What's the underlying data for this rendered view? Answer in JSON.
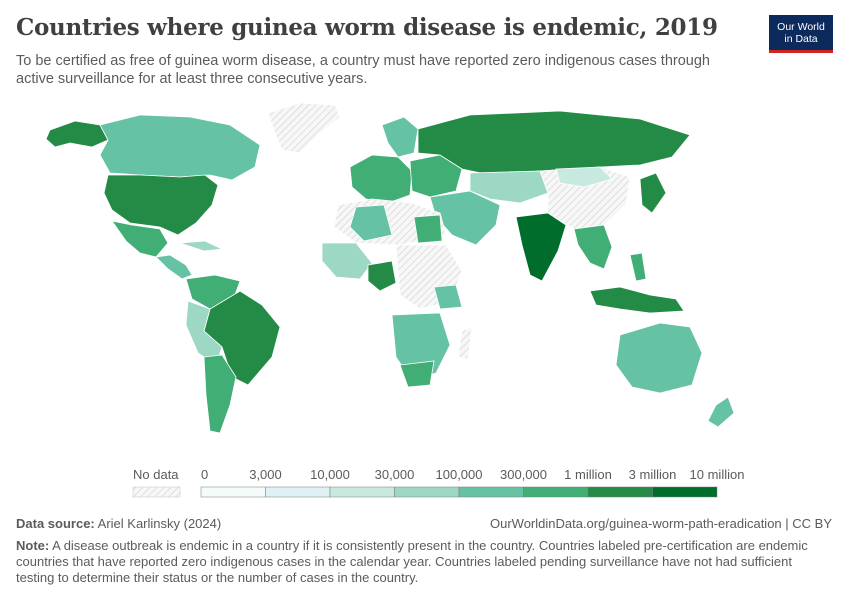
{
  "header": {
    "title": "Countries where guinea worm disease is endemic, 2019",
    "subtitle": "To be certified as free of guinea worm disease, a country must have reported zero indigenous cases through active surveillance for at least three consecutive years."
  },
  "logo": {
    "line1": "Our World",
    "line2": "in Data"
  },
  "legend": {
    "no_data_label": "No data",
    "bins": [
      {
        "label": "0",
        "color": "#f4fbfb"
      },
      {
        "label": "3,000",
        "color": "#dff1f5"
      },
      {
        "label": "10,000",
        "color": "#c7e9df"
      },
      {
        "label": "30,000",
        "color": "#9dd8c4"
      },
      {
        "label": "100,000",
        "color": "#66c2a4"
      },
      {
        "label": "300,000",
        "color": "#41ae76"
      },
      {
        "label": "1 million",
        "color": "#238b45"
      },
      {
        "label": "3 million",
        "color": "#006d2c"
      },
      {
        "label": "10 million",
        "color": ""
      }
    ]
  },
  "colors": {
    "no_data": "#e0e0e0",
    "bin0": "#f4fbfb",
    "bin1": "#dff1f5",
    "bin2": "#c7e9df",
    "bin3": "#9dd8c4",
    "bin4": "#66c2a4",
    "bin5": "#41ae76",
    "bin6": "#238b45",
    "bin7": "#006d2c"
  },
  "footer": {
    "source_label": "Data source:",
    "source_value": "Ariel Karlinsky (2024)",
    "url": "OurWorldinData.org/guinea-worm-path-eradication | CC BY",
    "note_label": "Note:",
    "note_text": "A disease outbreak is endemic in a country if it is consistently present in the country. Countries labeled pre-certification are endemic countries that have reported zero indigenous cases in the calendar year. Countries labeled pending surveillance have not had sufficient testing to determine their status or the number of cases in the country."
  }
}
